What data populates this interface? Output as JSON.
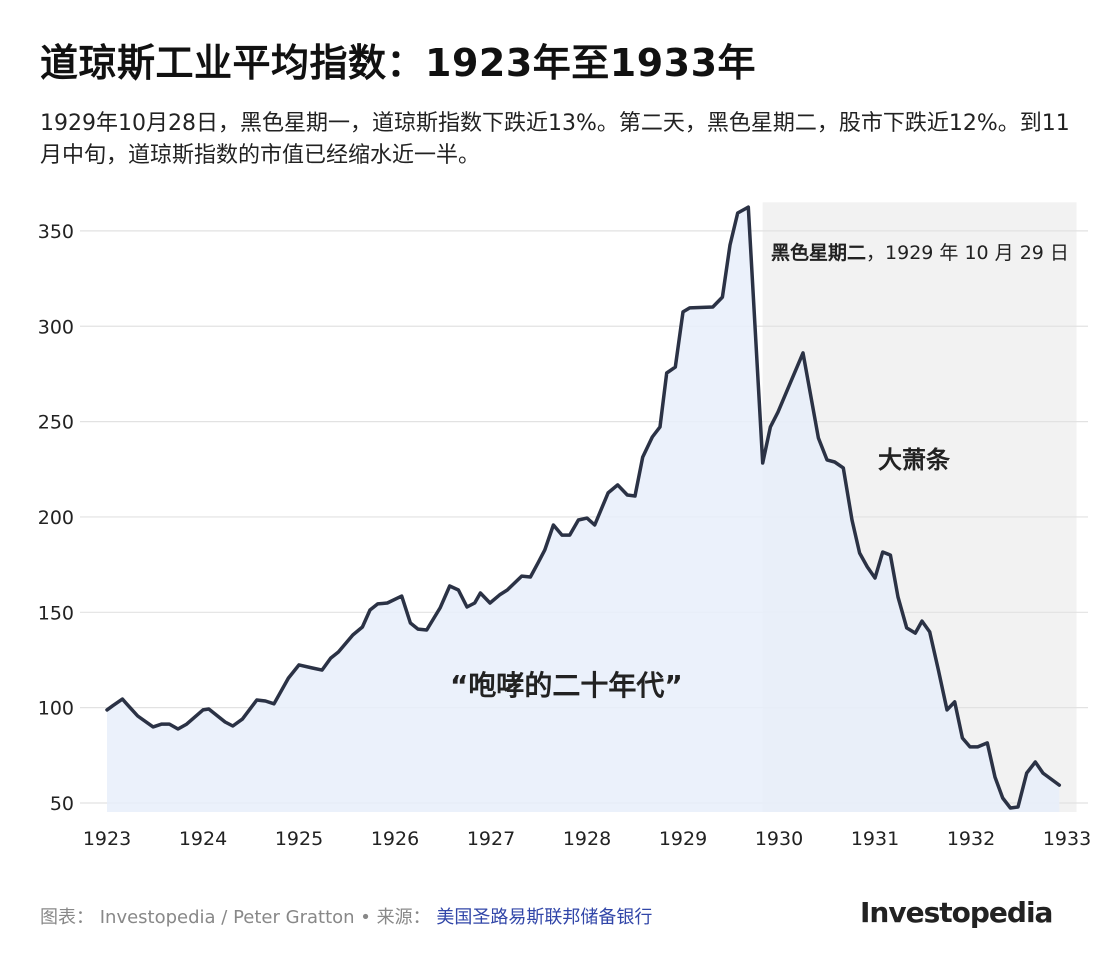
{
  "title": "道琼斯工业平均指数：1923年至1933年",
  "subtitle": "1929年10月28日，黑色星期一，道琼斯指数下跌近13%。第二天，黑色星期二，股市下跌近12%。到11月中旬，道琼斯指数的市值已经缩水近一半。",
  "footer": {
    "chart_label": "图表：",
    "chart_credit": "Investopedia / Peter Gratton",
    "separator": " • ",
    "source_label": "来源：",
    "source": "美国圣路易斯联邦储备银行",
    "logo": "Investopedia"
  },
  "colors": {
    "line": "#2b3245",
    "fill": "#e8effa",
    "shade": "#f2f2f2",
    "grid": "#e2e2e2",
    "source_link": "#3146a8"
  },
  "chart_data": {
    "type": "area",
    "title": "道琼斯工业平均指数：1923年至1933年",
    "xlabel": "",
    "ylabel": "",
    "xlim": [
      1923,
      1933
    ],
    "ylim": [
      50,
      365
    ],
    "grid": "horizontal",
    "x_ticks": [
      "1923",
      "1924",
      "1925",
      "1926",
      "1927",
      "1928",
      "1929",
      "1930",
      "1931",
      "1932",
      "1933"
    ],
    "y_ticks": [
      "50",
      "100",
      "150",
      "200",
      "250",
      "300",
      "350"
    ],
    "shaded_region": {
      "from": 1929.83,
      "to": 1933.1
    },
    "annotations": [
      {
        "bold": "黑色星期二",
        "text": "，1929 年 10 月 29 日"
      },
      {
        "text": "大萧条"
      },
      {
        "text": "“咆哮的二十年代”"
      }
    ],
    "points": [
      [
        1923.0,
        98.8
      ],
      [
        1923.06,
        101
      ],
      [
        1923.16,
        104.5
      ],
      [
        1923.24,
        100
      ],
      [
        1923.32,
        95.6
      ],
      [
        1923.48,
        89.9
      ],
      [
        1923.57,
        91.4
      ],
      [
        1923.65,
        91.4
      ],
      [
        1923.74,
        88.8
      ],
      [
        1923.83,
        91.4
      ],
      [
        1924.0,
        98.8
      ],
      [
        1924.06,
        99.3
      ],
      [
        1924.23,
        92.5
      ],
      [
        1924.31,
        90.4
      ],
      [
        1924.41,
        94
      ],
      [
        1924.56,
        104
      ],
      [
        1924.65,
        103.5
      ],
      [
        1924.74,
        102
      ],
      [
        1924.89,
        115.5
      ],
      [
        1925.0,
        122.4
      ],
      [
        1925.14,
        120.8
      ],
      [
        1925.24,
        119.7
      ],
      [
        1925.33,
        126
      ],
      [
        1925.41,
        129.2
      ],
      [
        1925.56,
        138.1
      ],
      [
        1925.66,
        142.3
      ],
      [
        1925.74,
        151.2
      ],
      [
        1925.82,
        154.4
      ],
      [
        1925.92,
        154.9
      ],
      [
        1926.07,
        158.5
      ],
      [
        1926.16,
        144.4
      ],
      [
        1926.24,
        141.2
      ],
      [
        1926.33,
        140.7
      ],
      [
        1926.47,
        152.3
      ],
      [
        1926.57,
        163.8
      ],
      [
        1926.66,
        161.7
      ],
      [
        1926.75,
        152.8
      ],
      [
        1926.83,
        154.9
      ],
      [
        1926.89,
        160.1
      ],
      [
        1926.99,
        154.9
      ],
      [
        1927.09,
        159.1
      ],
      [
        1927.17,
        161.7
      ],
      [
        1927.32,
        169
      ],
      [
        1927.41,
        168.5
      ],
      [
        1927.49,
        175.9
      ],
      [
        1927.56,
        182.7
      ],
      [
        1927.65,
        195.8
      ],
      [
        1927.74,
        190.5
      ],
      [
        1927.82,
        190.5
      ],
      [
        1927.91,
        198.4
      ],
      [
        1928.0,
        199.4
      ],
      [
        1928.08,
        195.8
      ],
      [
        1928.22,
        212.6
      ],
      [
        1928.32,
        216.8
      ],
      [
        1928.42,
        211.5
      ],
      [
        1928.5,
        211
      ],
      [
        1928.58,
        231.4
      ],
      [
        1928.68,
        241.9
      ],
      [
        1928.76,
        247.2
      ],
      [
        1928.83,
        275.5
      ],
      [
        1928.92,
        278.6
      ],
      [
        1929.0,
        307.5
      ],
      [
        1929.07,
        309.6
      ],
      [
        1929.31,
        310.1
      ],
      [
        1929.41,
        315.3
      ],
      [
        1929.49,
        342.6
      ],
      [
        1929.57,
        359.4
      ],
      [
        1929.68,
        362.5
      ],
      [
        1929.83,
        228.3
      ],
      [
        1929.91,
        247.2
      ],
      [
        1929.99,
        255
      ],
      [
        1930.14,
        272.9
      ],
      [
        1930.25,
        286
      ],
      [
        1930.41,
        241.4
      ],
      [
        1930.5,
        229.9
      ],
      [
        1930.58,
        228.8
      ],
      [
        1930.67,
        225.7
      ],
      [
        1930.76,
        198.4
      ],
      [
        1930.84,
        181.1
      ],
      [
        1930.92,
        173.8
      ],
      [
        1931.0,
        168
      ],
      [
        1931.08,
        181.6
      ],
      [
        1931.16,
        180
      ],
      [
        1931.24,
        158
      ],
      [
        1931.33,
        141.8
      ],
      [
        1931.42,
        139.1
      ],
      [
        1931.49,
        145.4
      ],
      [
        1931.57,
        139.7
      ],
      [
        1931.66,
        119.7
      ],
      [
        1931.75,
        98.8
      ],
      [
        1931.83,
        103
      ],
      [
        1931.91,
        84.1
      ],
      [
        1931.99,
        79.4
      ],
      [
        1932.07,
        79.4
      ],
      [
        1932.17,
        81.5
      ],
      [
        1932.25,
        63.6
      ],
      [
        1932.33,
        52.6
      ],
      [
        1932.41,
        47.4
      ],
      [
        1932.49,
        47.9
      ],
      [
        1932.58,
        65.7
      ],
      [
        1932.67,
        71.5
      ],
      [
        1932.75,
        65.7
      ],
      [
        1932.92,
        59.4
      ]
    ]
  }
}
